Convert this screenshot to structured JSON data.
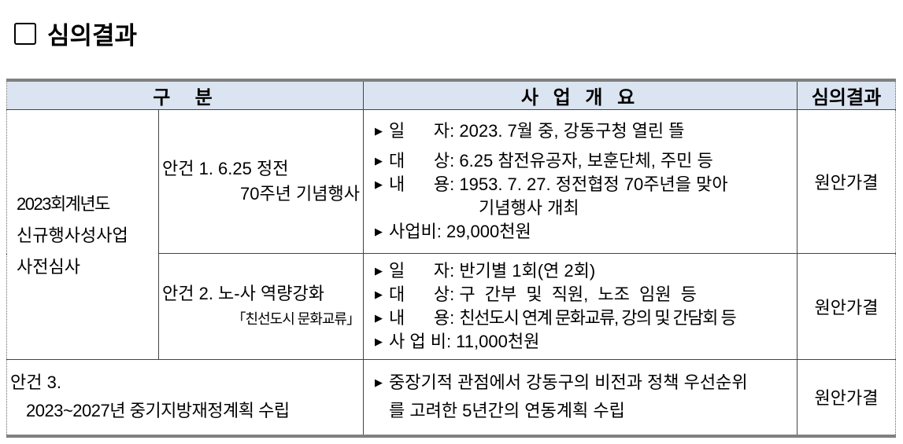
{
  "title": {
    "icon": "checkbox-square-icon",
    "text": "심의결과"
  },
  "headers": [
    "구  분",
    "사 업 개 요",
    "심의결과"
  ],
  "group_label": [
    "2023회계년도",
    "신규행사성사업",
    "사전심사"
  ],
  "items": [
    {
      "name_lines": [
        "안건 1. 6.25 정전",
        "70주년 기념행사"
      ],
      "details": [
        {
          "label": "일      자: ",
          "value": "2023. 7월 중, 강동구청 열린 뜰"
        },
        {
          "label": "대      상: ",
          "value": "6.25 참전유공자, 보훈단체, 주민 등"
        },
        {
          "label": "내      용: ",
          "value": "1953. 7. 27. 정전협정 70주년을 맞아",
          "cont": "기념행사 개최"
        },
        {
          "label": "사업비: ",
          "value": "29,000천원"
        }
      ],
      "result": "원안가결"
    },
    {
      "name_lines": [
        "안건 2. 노-사 역량강화",
        "「친선도시 문화교류」"
      ],
      "details": [
        {
          "label": "일      자: ",
          "value": "반기별 1회(연 2회)"
        },
        {
          "label": "대      상: ",
          "value": "구 간부 및 직원, 노조 임원 등"
        },
        {
          "label": "내      용: ",
          "value": "친선도시 연계 문화교류, 강의 및 간담회 등"
        },
        {
          "label": "사 업 비: ",
          "value": "11,000천원"
        }
      ],
      "result": "원안가결"
    },
    {
      "name_lines": [
        "안건 3.",
        "2023~2027년 중기지방재정계획 수립"
      ],
      "details": [
        {
          "label": "",
          "value": "중장기적 관점에서 강동구의 비전과 정책 우선순위",
          "cont2": "를 고려한 5년간의 연동계획 수립"
        }
      ],
      "result": "원안가결"
    }
  ]
}
